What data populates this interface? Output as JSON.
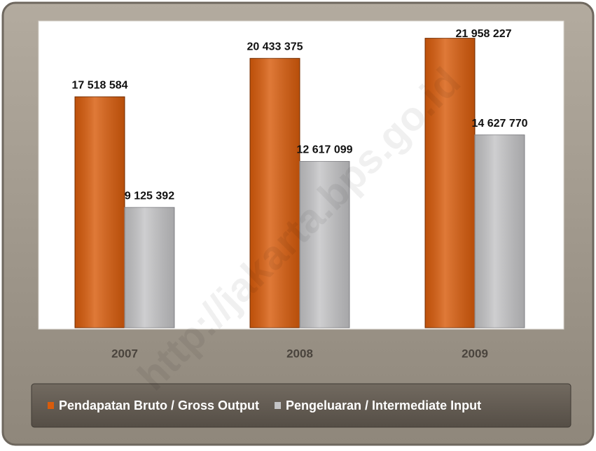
{
  "chart_data": {
    "type": "bar",
    "categories": [
      "2007",
      "2008",
      "2009"
    ],
    "series": [
      {
        "name": "Pendapatan Bruto / Gross Output",
        "color": "#d85c0c",
        "values": [
          17518584,
          20433375,
          21958227
        ],
        "value_labels": [
          "17 518 584",
          "20 433 375",
          "21 958 227"
        ]
      },
      {
        "name": "Pengeluaran / Intermediate Input",
        "color": "#c4c4c6",
        "values": [
          9125392,
          12617099,
          14627770
        ],
        "value_labels": [
          "9 125 392",
          "12 617 099",
          "14 627 770"
        ]
      }
    ],
    "ylim": [
      0,
      23000000
    ],
    "watermark": "http://jakarta.bps.go.id"
  }
}
